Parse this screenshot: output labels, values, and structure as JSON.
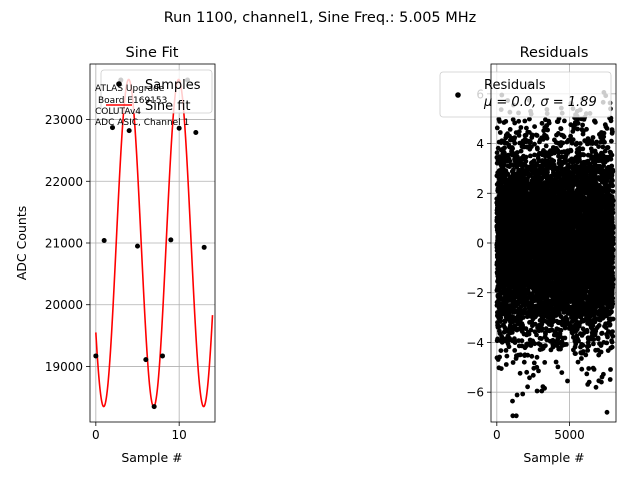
{
  "figure": {
    "suptitle": "Run 1100, channel1, Sine Freq.: 5.005 MHz"
  },
  "chart_data": [
    {
      "type": "scatter",
      "title": "Sine Fit",
      "xlabel": "Sample #",
      "ylabel": "ADC Counts",
      "xlim": [
        -0.7,
        14.3
      ],
      "ylim": [
        18100,
        23900
      ],
      "xticks": [
        0,
        10
      ],
      "yticks": [
        19000,
        20000,
        21000,
        22000,
        23000
      ],
      "grid": true,
      "legend": [
        "Samples",
        "Sine fit"
      ],
      "legend_placement": "upper right",
      "annotation": [
        "ATLAS Upgrade",
        "Board E169153",
        "COLUTAv4",
        "ADC ASIC, Channel 1"
      ],
      "series": [
        {
          "name": "Samples",
          "marker": "dot",
          "color": "#000000",
          "x": [
            0,
            1,
            2,
            3,
            4,
            5,
            6,
            7,
            8,
            9,
            10,
            11,
            12,
            13
          ],
          "y": [
            19170,
            21040,
            22870,
            23640,
            22820,
            20950,
            19110,
            18350,
            19170,
            21050,
            22860,
            23640,
            22790,
            20930
          ]
        },
        {
          "name": "Sine fit",
          "line": true,
          "color": "#ff0000",
          "offset": 21000,
          "amplitude": 2650,
          "period": 5.995,
          "phase_at_zero": 3.72,
          "x_range": [
            0,
            14
          ]
        }
      ]
    },
    {
      "type": "scatter",
      "title": "Residuals",
      "xlabel": "Sample #",
      "ylabel": "",
      "xlim": [
        -400,
        8200
      ],
      "ylim": [
        -7.2,
        7.2
      ],
      "xticks": [
        0,
        5000
      ],
      "yticks": [
        -6,
        -4,
        -2,
        0,
        2,
        4,
        6
      ],
      "grid": true,
      "legend": [
        "Residuals",
        "μ = 0.0, σ = 1.89"
      ],
      "legend_placement": "upper right",
      "series": [
        {
          "name": "Residuals",
          "marker": "dot",
          "color": "#000000",
          "n_points": 8000,
          "mean": 0.0,
          "std": 1.89,
          "x_range": [
            0,
            7999
          ]
        }
      ]
    }
  ]
}
